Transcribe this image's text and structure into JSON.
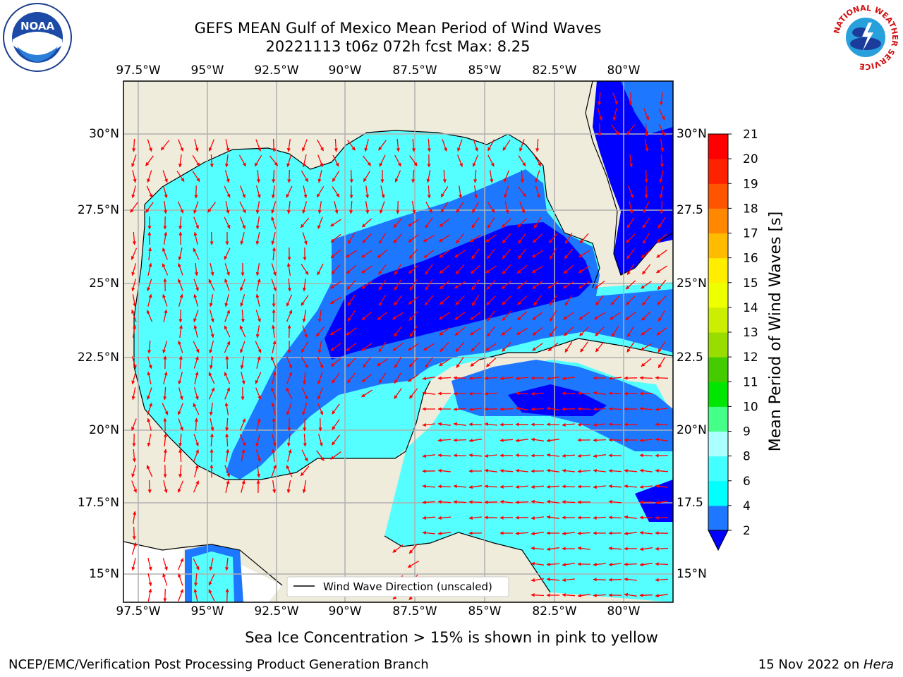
{
  "title": {
    "line1": "GEFS MEAN Gulf of Mexico Mean Period of Wind Waves",
    "line2": "20221113 t06z 072h fcst   Max: 8.25"
  },
  "map": {
    "lon_labels": [
      "97.5°W",
      "95°W",
      "92.5°W",
      "90°W",
      "87.5°W",
      "85°W",
      "82.5°W",
      "80°W"
    ],
    "lat_labels_left": [
      "30°N",
      "27.5°N",
      "25°N",
      "22.5°N",
      "20°N",
      "17.5°N",
      "15°N"
    ],
    "lat_labels_right": [
      "30°N",
      "27.5",
      "25°N",
      "22.5",
      "20°N",
      "17.5",
      "15°N"
    ],
    "legend_label": "Wind Wave Direction (unscaled)",
    "arrow_color": "#ff0000",
    "land_color": "#efecdc"
  },
  "colorbar": {
    "label": "Mean Period of Wind Waves [s]",
    "tick_labels": [
      "2",
      "4",
      "6",
      "8",
      "9",
      "10",
      "11",
      "12",
      "13",
      "14",
      "15",
      "16",
      "17",
      "18",
      "19",
      "20",
      "21"
    ],
    "colors": [
      "#0000ff",
      "#1e78ff",
      "#00ffff",
      "#44ffff",
      "#aaffff",
      "#44ff88",
      "#00e600",
      "#44cc00",
      "#99dd00",
      "#ccee00",
      "#eeff00",
      "#ffee00",
      "#ffbb00",
      "#ff8800",
      "#ff5500",
      "#ff2200",
      "#ff0000"
    ]
  },
  "logos": {
    "left": "NOAA",
    "right_ring": "NATIONAL WEATHER SERVICE"
  },
  "footer": {
    "note": "Sea Ice Concentration > 15% is shown in pink to yellow",
    "left": "NCEP/EMC/Verification Post Processing Product Generation Branch",
    "right_date": "15 Nov 2022 on ",
    "right_host": "Hera"
  }
}
